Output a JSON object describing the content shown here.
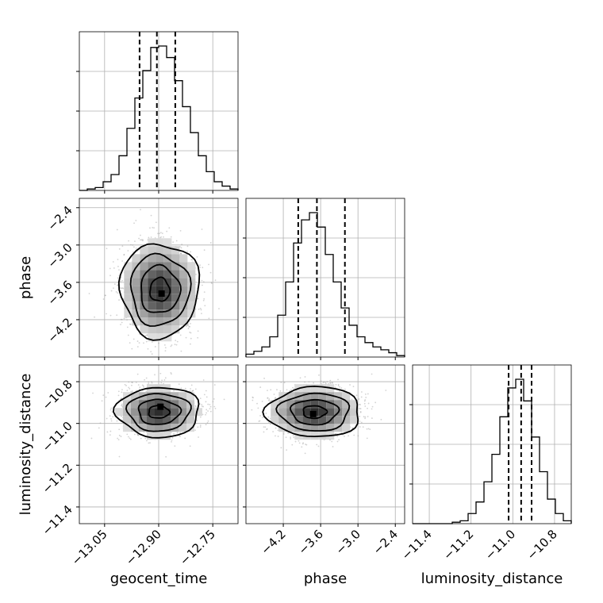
{
  "chart_data": {
    "type": "corner",
    "parameters": [
      "geocent_time",
      "phase",
      "luminosity_distance"
    ],
    "axis_labels": {
      "geocent_time": "geocent_time",
      "phase": "phase",
      "luminosity_distance": "luminosity_distance"
    },
    "ranges": {
      "geocent_time": [
        -13.12,
        -12.68
      ],
      "phase": [
        -4.8,
        -2.25
      ],
      "luminosity_distance": [
        -11.48,
        -10.72
      ]
    },
    "ticks": {
      "geocent_time": [
        -13.05,
        -12.9,
        -12.75
      ],
      "phase": [
        -4.2,
        -3.6,
        -3.0,
        -2.4
      ],
      "luminosity_distance": [
        -11.4,
        -11.2,
        -11.0,
        -10.8
      ]
    },
    "tick_labels": {
      "geocent_time": [
        "−13.05",
        "−12.90",
        "−12.75"
      ],
      "phase": [
        "−4.2",
        "−3.6",
        "−3.0",
        "−2.4"
      ],
      "luminosity_distance": [
        "−11.4",
        "−11.2",
        "−11.0",
        "−10.8"
      ]
    },
    "histograms": {
      "geocent_time": {
        "edges_start": -13.12,
        "bin_width": 0.022,
        "counts": [
          0,
          1,
          2,
          6,
          11,
          24,
          43,
          64,
          83,
          99,
          100,
          92,
          76,
          58,
          40,
          24,
          13,
          6,
          3,
          1
        ]
      },
      "phase": {
        "edges_start": -4.8,
        "bin_width": 0.1275,
        "counts": [
          2,
          4,
          7,
          14,
          29,
          52,
          79,
          95,
          100,
          90,
          71,
          52,
          34,
          22,
          14,
          10,
          7,
          5,
          3,
          1
        ]
      },
      "luminosity_distance": {
        "edges_start": -11.48,
        "bin_width": 0.038,
        "counts": [
          0,
          0,
          0,
          0,
          0,
          1,
          2,
          7,
          15,
          29,
          48,
          74,
          94,
          100,
          85,
          60,
          36,
          17,
          7,
          2
        ]
      }
    },
    "quantiles": {
      "geocent_time": [
        -12.953,
        -12.905,
        -12.854
      ],
      "phase": [
        -3.96,
        -3.66,
        -3.21
      ],
      "luminosity_distance": [
        -11.02,
        -10.96,
        -10.91
      ]
    },
    "pairs": [
      {
        "x": "geocent_time",
        "y": "phase",
        "center": [
          -12.897,
          -3.72
        ],
        "sigma": [
          0.052,
          0.38
        ],
        "levels": [
          0.5,
          1.0,
          1.5,
          2.0
        ],
        "mode_marker": [
          -12.892,
          -3.78
        ]
      },
      {
        "x": "geocent_time",
        "y": "luminosity_distance",
        "center": [
          -12.9,
          -10.945
        ],
        "sigma": [
          0.055,
          0.06
        ],
        "levels": [
          0.5,
          1.0,
          1.5,
          2.0
        ],
        "mode_marker": [
          -12.895,
          -10.92
        ]
      },
      {
        "x": "phase",
        "y": "luminosity_distance",
        "center": [
          -3.7,
          -10.945
        ],
        "sigma": [
          0.36,
          0.06
        ],
        "levels": [
          0.5,
          1.0,
          1.5,
          2.0
        ],
        "mode_marker": [
          -3.72,
          -10.955
        ]
      }
    ],
    "grid": true,
    "colors": {
      "samples": "#9e9e9e",
      "contour": "#000000",
      "hist": "#000000"
    }
  }
}
